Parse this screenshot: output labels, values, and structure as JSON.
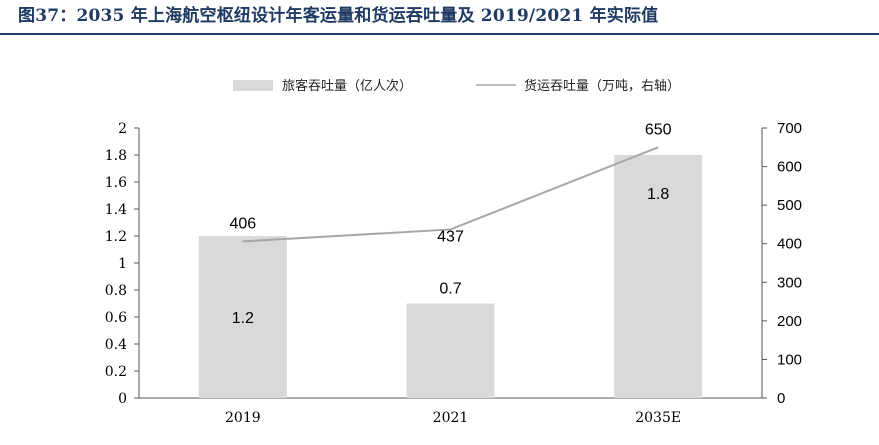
{
  "figure": {
    "title": "图37：2035 年上海航空枢纽设计年客运量和货运吞吐量及 2019/2021 年实际值"
  },
  "chart_data": {
    "type": "bar",
    "categories": [
      "2019",
      "2021",
      "2035E"
    ],
    "series": [
      {
        "name": "旅客吞吐量（亿人次）",
        "type": "bar",
        "axis": "left",
        "values": [
          1.2,
          0.7,
          1.8
        ],
        "labels": [
          "1.2",
          "0.7",
          "1.8"
        ],
        "color": "#d9d9d9"
      },
      {
        "name": "货运吞吐量（万吨，右轴）",
        "type": "line",
        "axis": "right",
        "values": [
          406,
          437,
          650
        ],
        "labels": [
          "406",
          "437",
          "650"
        ],
        "color": "#a6a6a6"
      }
    ],
    "y_left": {
      "min": 0,
      "max": 2,
      "ticks": [
        "0",
        "0.2",
        "0.4",
        "0.6",
        "0.8",
        "1",
        "1.2",
        "1.4",
        "1.6",
        "1.8",
        "2"
      ]
    },
    "y_right": {
      "min": 0,
      "max": 700,
      "ticks": [
        "0",
        "100",
        "200",
        "300",
        "400",
        "500",
        "600",
        "700"
      ]
    },
    "legend_position": "top-center",
    "grid": false
  }
}
